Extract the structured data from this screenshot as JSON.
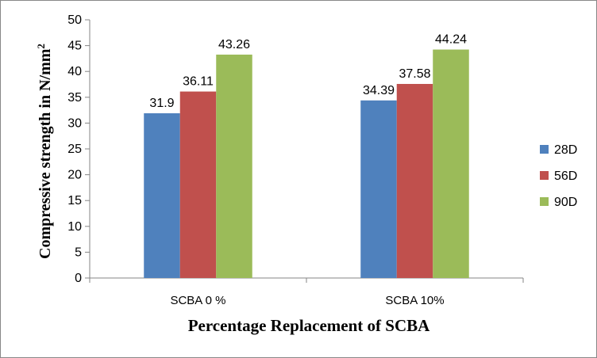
{
  "chart_data": {
    "type": "bar",
    "title": "",
    "xlabel": "Percentage Replacement of SCBA",
    "ylabel": "Compressive strength in N/mm",
    "ylabel_superscript": "2",
    "ylim": [
      0,
      50
    ],
    "ytick_step": 5,
    "ytick_labels": [
      "0",
      "5",
      "10",
      "15",
      "20",
      "25",
      "30",
      "35",
      "40",
      "45",
      "50"
    ],
    "grid": false,
    "legend_position": "right",
    "categories": [
      "SCBA 0 %",
      "SCBA 10%"
    ],
    "series": [
      {
        "name": "28D",
        "color": "#4F81BD",
        "values": [
          31.9,
          34.39
        ],
        "labels": [
          "31.9",
          "34.39"
        ]
      },
      {
        "name": "56D",
        "color": "#C0504D",
        "values": [
          36.11,
          37.58
        ],
        "labels": [
          "36.11",
          "37.58"
        ]
      },
      {
        "name": "90D",
        "color": "#9BBB59",
        "values": [
          43.26,
          44.24
        ],
        "labels": [
          "43.26",
          "44.24"
        ]
      }
    ]
  }
}
